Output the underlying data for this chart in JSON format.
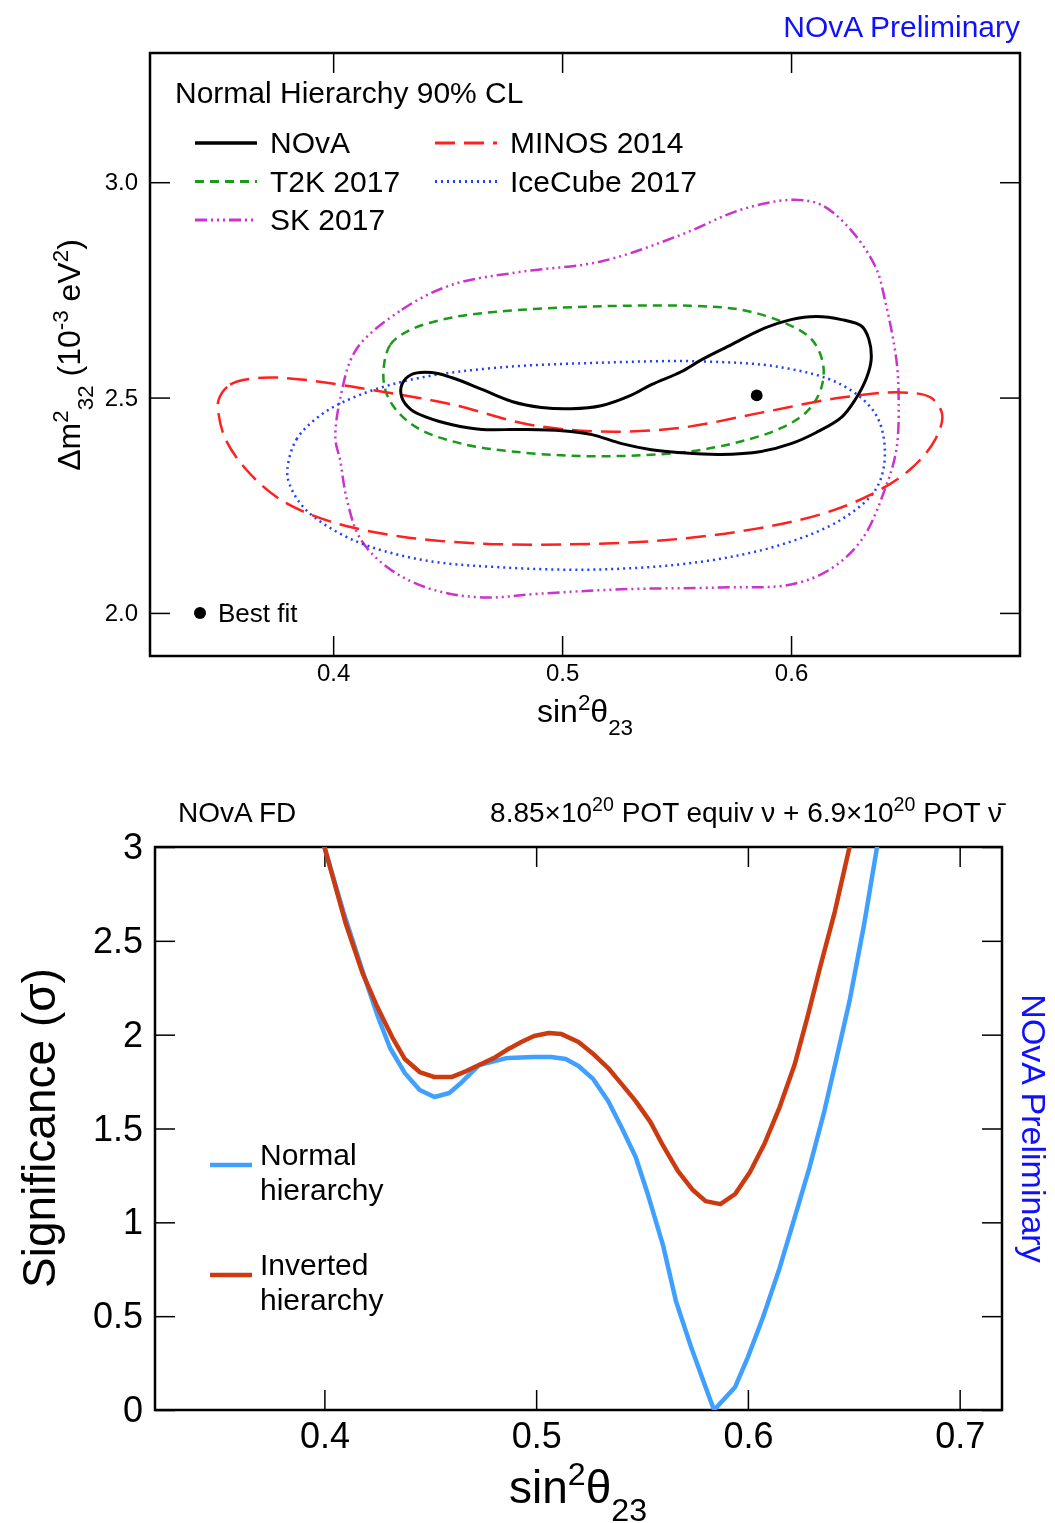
{
  "chart_data": [
    {
      "type": "scatter",
      "marker": "circle",
      "xlabel": "sin$^{2}$θ$_{23}$",
      "ylabel": "Δm$^{2}$$_{32}$ (10$^{-3}$ eV$^{2}$)",
      "legend": "bottom left",
      "annotations": [
        "NOvA Preliminary",
        "Normal Hierarchy 90% CL",
        "NOvA",
        "MINOS 2014",
        "T2K 2017",
        "IceCube 2017",
        "SK 2017"
      ],
      "xlim": [
        0.32,
        0.7
      ],
      "ylim": [
        1.9,
        3.3
      ],
      "xticks": [
        0.4,
        0.5,
        0.6
      ],
      "yticks": [
        {
          "value": 2.0,
          "label": "2.0"
        },
        {
          "value": 2.5,
          "label": "2.5"
        },
        {
          "value": 3.0,
          "label": "3.0"
        }
      ],
      "series": [
        {
          "name": "Best fit",
          "color": "#000000",
          "x": [
            0.585
          ],
          "values": [
            2.505
          ]
        }
      ]
    },
    {
      "type": "line",
      "title": "NOvA FD",
      "subtitle": "8.85×10$^{20}$ POT equiv ν + 6.9×10$^{20}$ POT ν̄",
      "xlabel": "sin$^{2}$θ$_{23}$",
      "ylabel": "Significance (σ)",
      "legend": "bottom left",
      "annotations": [
        "NOvA Preliminary"
      ],
      "xlim": [
        0.32,
        0.72
      ],
      "ylim": [
        0,
        3
      ],
      "xticks": [
        0.4,
        0.5,
        0.6,
        0.7
      ],
      "yticks": [
        0,
        0.5,
        1,
        1.5,
        2,
        2.5,
        3
      ],
      "series": [
        {
          "name": "Normal hierarchy",
          "color": "#3fa0ff",
          "line_style": "solid",
          "x": [
            0.4,
            0.409,
            0.418,
            0.425,
            0.431,
            0.438,
            0.445,
            0.452,
            0.459,
            0.465,
            0.473,
            0.486,
            0.499,
            0.507,
            0.514,
            0.52,
            0.527,
            0.534,
            0.54,
            0.547,
            0.553,
            0.56,
            0.566,
            0.573,
            0.58,
            0.584,
            0.594,
            0.6,
            0.607,
            0.615,
            0.622,
            0.629,
            0.636,
            0.642,
            0.648,
            0.655,
            0.661
          ],
          "values": [
            3.0,
            2.653,
            2.339,
            2.104,
            1.929,
            1.795,
            1.705,
            1.668,
            1.689,
            1.748,
            1.838,
            1.875,
            1.881,
            1.881,
            1.87,
            1.833,
            1.763,
            1.646,
            1.513,
            1.348,
            1.14,
            0.874,
            0.581,
            0.341,
            0.123,
            0,
            0.123,
            0.282,
            0.49,
            0.757,
            1.023,
            1.289,
            1.588,
            1.881,
            2.179,
            2.595,
            3.0
          ]
        },
        {
          "name": "Inverted hierarchy",
          "color": "#cc3a10",
          "line_style": "solid",
          "x": [
            0.4,
            0.41,
            0.418,
            0.425,
            0.432,
            0.438,
            0.445,
            0.452,
            0.46,
            0.467,
            0.473,
            0.48,
            0.486,
            0.493,
            0.499,
            0.506,
            0.512,
            0.52,
            0.527,
            0.534,
            0.54,
            0.547,
            0.554,
            0.56,
            0.567,
            0.574,
            0.58,
            0.587,
            0.594,
            0.601,
            0.608,
            0.615,
            0.622,
            0.628,
            0.634,
            0.641,
            0.648
          ],
          "values": [
            3.0,
            2.595,
            2.328,
            2.147,
            1.987,
            1.87,
            1.801,
            1.774,
            1.774,
            1.806,
            1.838,
            1.875,
            1.918,
            1.961,
            1.993,
            2.009,
            2.003,
            1.961,
            1.897,
            1.822,
            1.742,
            1.646,
            1.534,
            1.407,
            1.273,
            1.172,
            1.113,
            1.097,
            1.151,
            1.268,
            1.423,
            1.614,
            1.838,
            2.088,
            2.355,
            2.653,
            3.0
          ]
        }
      ]
    }
  ]
}
